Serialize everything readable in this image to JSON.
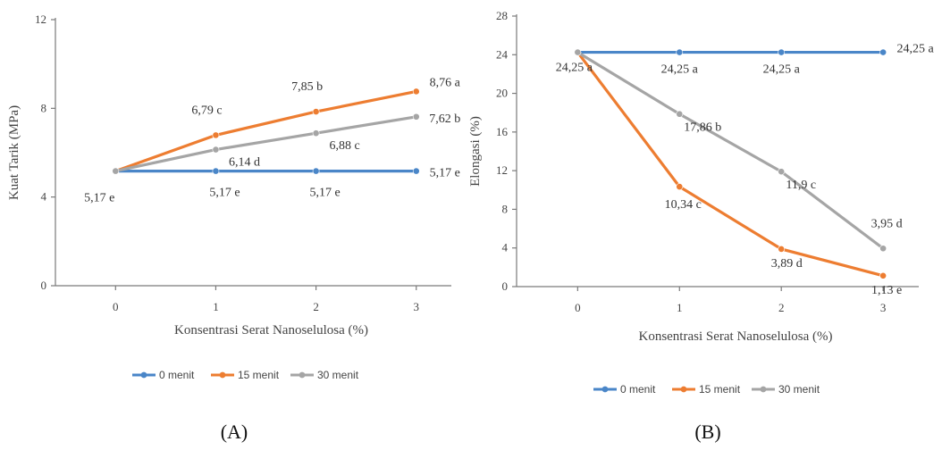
{
  "chart_data": [
    {
      "type": "line",
      "panel_label": "(A)",
      "xlabel": "Konsentrasi Serat Nanoselulosa (%)",
      "ylabel": "Kuat Tarik (MPa)",
      "x": [
        0,
        1,
        2,
        3
      ],
      "xlim": [
        -0.6,
        3.35
      ],
      "ylim": [
        0,
        12
      ],
      "yticks": [
        0,
        4,
        8,
        12
      ],
      "grid": false,
      "legend_position": "bottom",
      "series": [
        {
          "name": "0 menit",
          "color": "#4a86c8",
          "values": [
            5.17,
            5.17,
            5.17,
            5.17
          ],
          "labels": [
            "5,17 e",
            "5,17 e",
            "5,17 e",
            "5,17 e"
          ]
        },
        {
          "name": "15 menit",
          "color": "#ed7d31",
          "values": [
            5.17,
            6.79,
            7.85,
            8.76
          ],
          "labels": [
            "",
            "6,79 c",
            "7,85 b",
            "8,76 a"
          ]
        },
        {
          "name": "30 menit",
          "color": "#a5a5a5",
          "values": [
            5.17,
            6.14,
            6.88,
            7.62
          ],
          "labels": [
            "",
            "6,14 d",
            "6,88 c",
            "7,62 b"
          ]
        }
      ]
    },
    {
      "type": "line",
      "panel_label": "(B)",
      "xlabel": "Konsentrasi Serat Nanoselulosa (%)",
      "ylabel": "Elongasi (%)",
      "x": [
        0,
        1,
        2,
        3
      ],
      "xlim": [
        -0.6,
        3.35
      ],
      "ylim": [
        0,
        28
      ],
      "yticks": [
        0,
        4,
        8,
        12,
        16,
        20,
        24,
        28
      ],
      "grid": false,
      "legend_position": "bottom",
      "series": [
        {
          "name": "0 menit",
          "color": "#4a86c8",
          "values": [
            24.25,
            24.25,
            24.25,
            24.25
          ],
          "labels": [
            "24,25 a",
            "24,25 a",
            "24,25 a",
            "24,25 a"
          ]
        },
        {
          "name": "15 menit",
          "color": "#ed7d31",
          "values": [
            24.25,
            10.34,
            3.89,
            1.13
          ],
          "labels": [
            "",
            "10,34 c",
            "3,89 d",
            "1,13 e"
          ]
        },
        {
          "name": "30 menit",
          "color": "#a5a5a5",
          "values": [
            24.25,
            17.86,
            11.9,
            3.95
          ],
          "labels": [
            "",
            "17,86 b",
            "11,9 c",
            "3,95 d"
          ]
        }
      ]
    }
  ]
}
